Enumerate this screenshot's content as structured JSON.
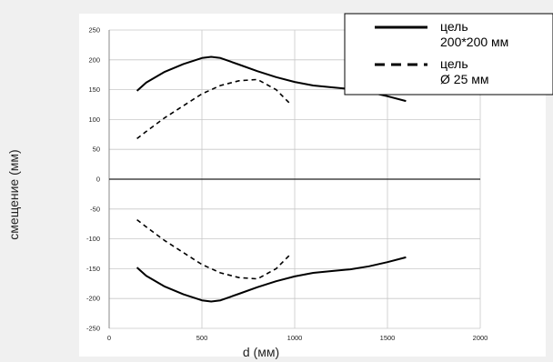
{
  "chart_data": {
    "type": "line",
    "xlabel": "d (мм)",
    "ylabel": "смещение (мм)",
    "xlim": [
      0,
      2000
    ],
    "ylim": [
      -250,
      250
    ],
    "x_ticks": [
      "0",
      "500",
      "1000",
      "1500",
      "2000"
    ],
    "y_ticks": [
      "250",
      "200",
      "150",
      "100",
      "50",
      "0",
      "-50",
      "-100",
      "-150",
      "-200",
      "-250"
    ],
    "grid": true,
    "legend_position": "top-right",
    "series": [
      {
        "name": "цель 200*200 мм",
        "name_lines": [
          "цель",
          "200*200 мм"
        ],
        "style": "solid",
        "color": "#000000",
        "x": [
          150,
          200,
          300,
          400,
          500,
          550,
          600,
          700,
          800,
          900,
          1000,
          1100,
          1200,
          1300,
          1400,
          1500,
          1600
        ],
        "y": [
          148,
          162,
          180,
          193,
          203,
          205,
          203,
          192,
          181,
          171,
          163,
          157,
          154,
          151,
          146,
          139,
          131
        ]
      },
      {
        "name": "цель 200*200 мм (нижняя)",
        "style": "solid",
        "color": "#000000",
        "x": [
          150,
          200,
          300,
          400,
          500,
          550,
          600,
          700,
          800,
          900,
          1000,
          1100,
          1200,
          1300,
          1400,
          1500,
          1600
        ],
        "y": [
          -148,
          -162,
          -180,
          -193,
          -203,
          -205,
          -203,
          -192,
          -181,
          -171,
          -163,
          -157,
          -154,
          -151,
          -146,
          -139,
          -131
        ]
      },
      {
        "name": "цель Ø 25 мм",
        "name_lines": [
          "цель",
          "Ø 25 мм"
        ],
        "style": "dashed",
        "color": "#000000",
        "x": [
          150,
          200,
          300,
          400,
          500,
          600,
          700,
          800,
          900,
          980
        ],
        "y": [
          68,
          80,
          103,
          123,
          143,
          157,
          165,
          167,
          150,
          125
        ]
      },
      {
        "name": "цель Ø 25 мм (нижняя)",
        "style": "dashed",
        "color": "#000000",
        "x": [
          150,
          200,
          300,
          400,
          500,
          600,
          700,
          800,
          900,
          980
        ],
        "y": [
          -68,
          -80,
          -103,
          -123,
          -143,
          -157,
          -165,
          -167,
          -150,
          -125
        ]
      }
    ]
  }
}
